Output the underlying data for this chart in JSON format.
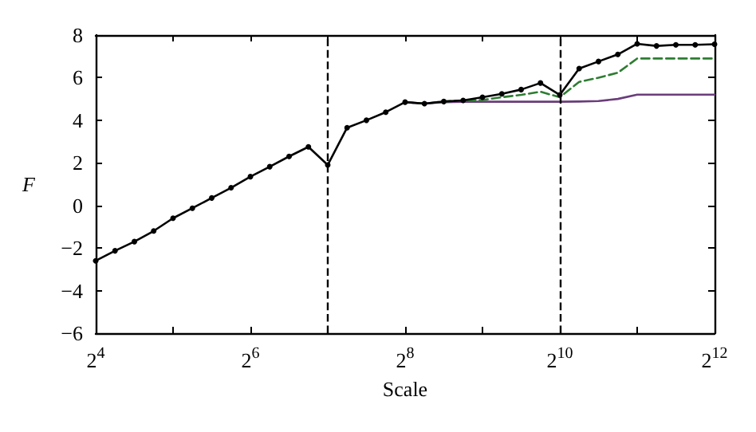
{
  "chart_data": {
    "type": "line",
    "xlabel": "Scale",
    "ylabel": "F",
    "x": [
      16,
      19.03,
      22.63,
      26.91,
      32,
      38.05,
      45.25,
      53.82,
      64,
      76.11,
      90.51,
      107.63,
      128,
      152.22,
      181.02,
      215.27,
      256,
      304.44,
      362.04,
      430.54,
      512,
      608.87,
      724.08,
      861.08,
      1024,
      1217.75,
      1448.15,
      1722.16,
      2048,
      2435.5,
      2896.31,
      3444.31,
      4096
    ],
    "series": [
      {
        "color": "#6a3d7a",
        "marker": "none",
        "x": [
          256,
          304.44,
          362.04,
          430.54,
          512,
          608.87,
          724.08,
          861.08,
          1024,
          1217.75,
          1448.15,
          1722.16,
          2048,
          2435.5,
          2896.31,
          3444.31,
          4096
        ],
        "values": [
          4.85,
          4.78,
          4.85,
          4.87,
          4.87,
          4.87,
          4.87,
          4.87,
          4.87,
          4.88,
          4.9,
          5.0,
          5.2,
          5.2,
          5.2,
          5.2,
          5.2
        ]
      },
      {
        "color": "#2e7d32",
        "marker": "none",
        "line_style": "dashed",
        "x": [
          256,
          304.44,
          362.04,
          430.54,
          512,
          608.87,
          724.08,
          861.08,
          1024,
          1217.75,
          1448.15,
          1722.16,
          2048,
          2435.5,
          2896.31,
          3444.31,
          4096
        ],
        "values": [
          4.85,
          4.78,
          4.88,
          4.93,
          4.95,
          5.08,
          5.19,
          5.34,
          5.08,
          5.8,
          6.0,
          6.23,
          6.9,
          6.9,
          6.9,
          6.9,
          6.9
        ]
      },
      {
        "color": "#000000",
        "marker": "circle",
        "values": [
          -2.6,
          -2.13,
          -1.7,
          -1.2,
          -0.6,
          -0.13,
          0.35,
          0.83,
          1.35,
          1.82,
          2.3,
          2.75,
          1.9,
          3.65,
          4.0,
          4.38,
          4.85,
          4.78,
          4.88,
          4.93,
          5.08,
          5.24,
          5.44,
          5.75,
          5.19,
          6.43,
          6.76,
          7.09,
          7.59,
          7.49,
          7.54,
          7.54,
          7.57
        ]
      }
    ],
    "log": "x",
    "xlim": [
      16,
      4096
    ],
    "xticks": [
      {
        "value": 16,
        "label": "2$^{4}$"
      },
      {
        "value": 32,
        "label": null
      },
      {
        "value": 64,
        "label": "2$^{6}$"
      },
      {
        "value": 128,
        "label": null
      },
      {
        "value": 256,
        "label": "2$^{8}$"
      },
      {
        "value": 512,
        "label": null
      },
      {
        "value": 1024,
        "label": "2$^{10}$"
      },
      {
        "value": 2048,
        "label": null
      },
      {
        "value": 4096,
        "label": "2$^{12}$"
      }
    ],
    "ylim": [
      -6,
      8
    ],
    "yticks": [
      -6,
      -4,
      -2,
      0,
      2,
      4,
      6,
      8
    ],
    "ref_lines": [
      {
        "axis": "x",
        "value": 128,
        "color": "#000000",
        "line_style": "dashed"
      },
      {
        "axis": "x",
        "value": 1024,
        "color": "#000000",
        "line_style": "dashed"
      }
    ],
    "grid": false
  }
}
